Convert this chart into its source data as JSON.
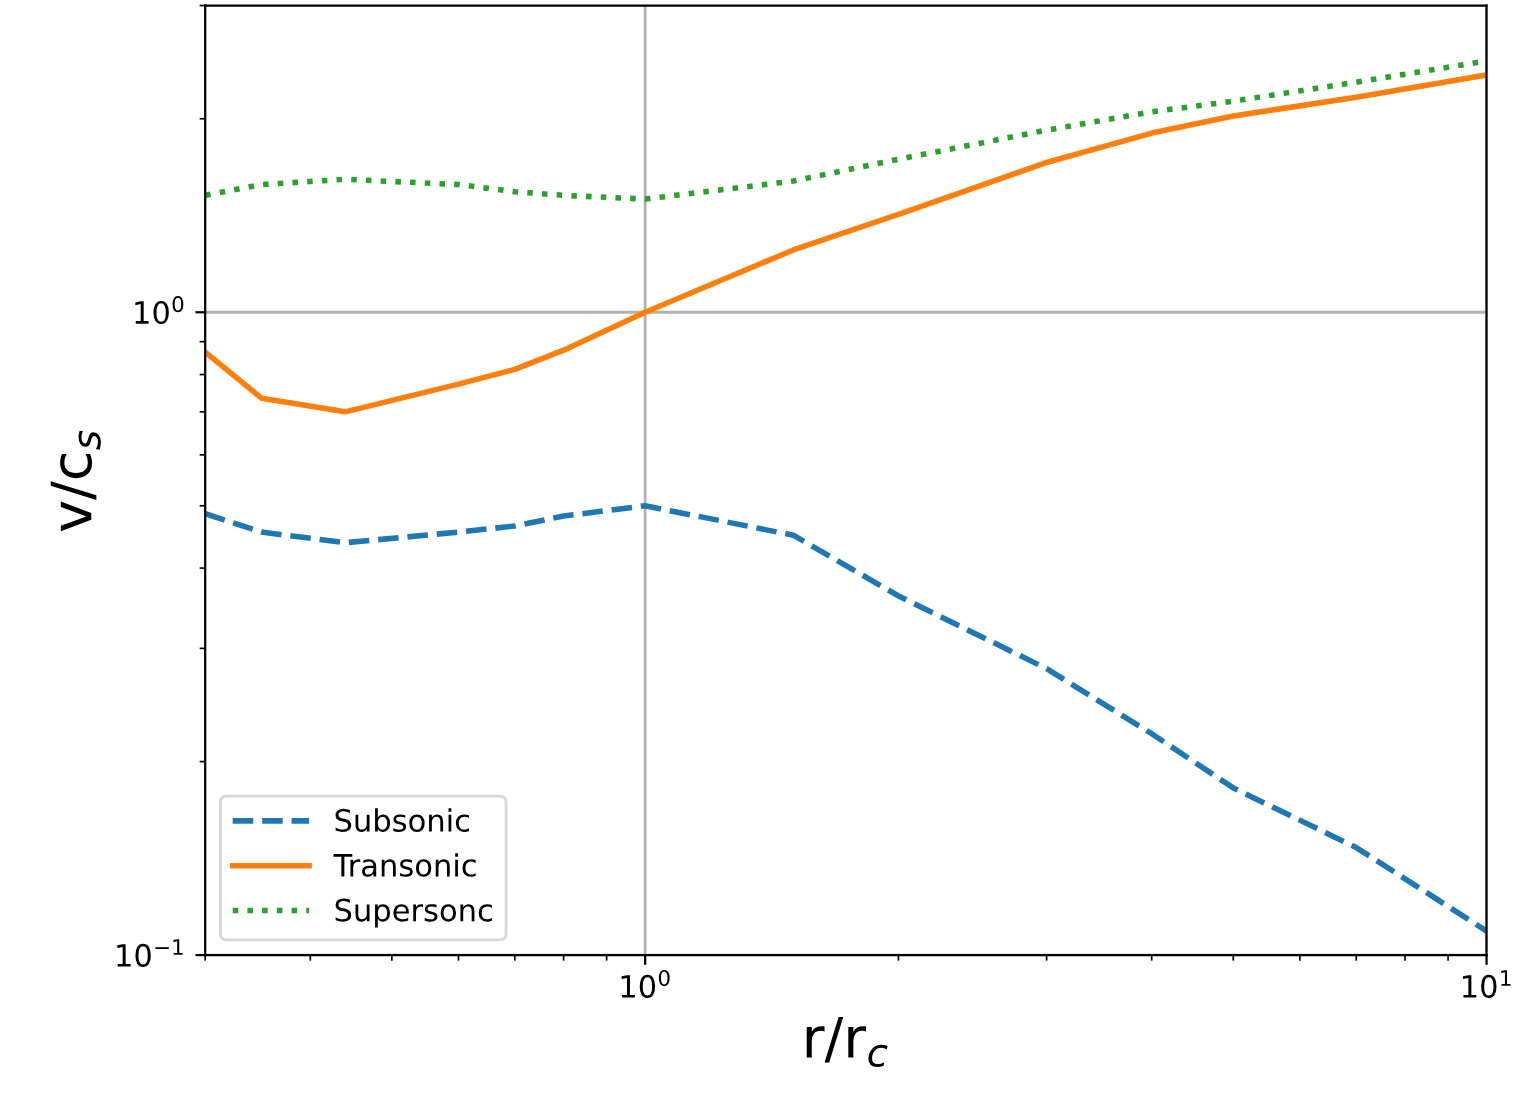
{
  "chart_data": {
    "type": "line",
    "xlabel": "r/r$_{c}$",
    "ylabel": "v/c$_{s}$",
    "log": "xy",
    "grid": true,
    "legend": "bottom left",
    "xlim": [
      0.3,
      10
    ],
    "ylim": [
      0.1,
      3
    ],
    "xticks": [
      {
        "value": 1,
        "label": "10$^{0}$"
      },
      {
        "value": 10,
        "label": "10$^{1}$"
      }
    ],
    "yticks": [
      {
        "value": 0.1,
        "label": "10$^{−1}$"
      },
      {
        "value": 1,
        "label": "10$^{0}$"
      }
    ],
    "x": [
      0.3,
      0.35,
      0.44,
      0.6,
      0.7,
      0.8,
      1,
      1.5,
      2,
      3,
      4,
      5,
      7,
      10
    ],
    "series": [
      {
        "name": "Subsonic",
        "color": "#1f77b4",
        "line_style": "dashed",
        "values": [
          0.486,
          0.455,
          0.438,
          0.455,
          0.465,
          0.482,
          0.5,
          0.45,
          0.362,
          0.279,
          0.221,
          0.182,
          0.147,
          0.109
        ]
      },
      {
        "name": "Transonic",
        "color": "#ff7f0e",
        "line_style": "solid",
        "values": [
          0.867,
          0.735,
          0.7,
          0.773,
          0.815,
          0.873,
          1.0,
          1.25,
          1.42,
          1.71,
          1.9,
          2.02,
          2.16,
          2.34
        ]
      },
      {
        "name": "Supersonc",
        "color": "#2ca02c",
        "line_style": "dotted",
        "values": [
          1.52,
          1.58,
          1.61,
          1.58,
          1.54,
          1.52,
          1.5,
          1.6,
          1.73,
          1.92,
          2.05,
          2.13,
          2.28,
          2.46
        ]
      }
    ]
  }
}
